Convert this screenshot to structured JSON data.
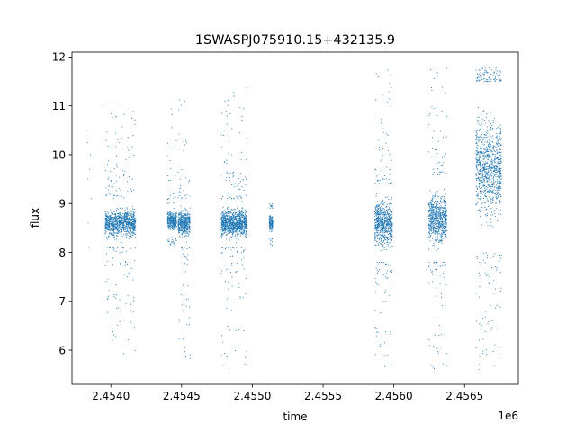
{
  "chart_data": {
    "type": "scatter",
    "title": "1SWASPJ075910.15+432135.9",
    "xlabel": "time",
    "ylabel": "flux",
    "offset_text": "1e6",
    "xlim": [
      2453725,
      2456880
    ],
    "ylim": [
      5.3,
      12.1
    ],
    "x_ticks": [
      {
        "value": 2454000,
        "label": "2.4540"
      },
      {
        "value": 2454500,
        "label": "2.4545"
      },
      {
        "value": 2455000,
        "label": "2.4550"
      },
      {
        "value": 2455500,
        "label": "2.4555"
      },
      {
        "value": 2456000,
        "label": "2.4560"
      },
      {
        "value": 2456500,
        "label": "2.4565"
      }
    ],
    "y_ticks": [
      {
        "value": 6,
        "label": "6"
      },
      {
        "value": 7,
        "label": "7"
      },
      {
        "value": 8,
        "label": "8"
      },
      {
        "value": 9,
        "label": "9"
      },
      {
        "value": 10,
        "label": "10"
      },
      {
        "value": 11,
        "label": "11"
      },
      {
        "value": 12,
        "label": "12"
      }
    ],
    "grid": false,
    "marker_color": "#1f77b4",
    "series": [
      {
        "x": [
          2453832,
          2453835,
          2453838,
          2453840,
          2453845,
          2453850,
          2453855,
          2453860
        ],
        "y": [
          10.5,
          10.25,
          9.5,
          8.6,
          8.1,
          9.7,
          10.0,
          9.1
        ]
      },
      {
        "clusters": [
          {
            "x_range": [
              2453960,
              2454175
            ],
            "core": [
              8.1,
              9.1
            ],
            "range": [
              5.9,
              11.1
            ]
          },
          {
            "x_range": [
              2454400,
              2454465
            ],
            "core": [
              8.3,
              9.0
            ],
            "range": [
              8.1,
              11.0
            ]
          },
          {
            "x_range": [
              2454475,
              2454560
            ],
            "core": [
              8.1,
              9.1
            ],
            "range": [
              5.7,
              11.2
            ]
          },
          {
            "x_range": [
              2454780,
              2454960
            ],
            "core": [
              8.1,
              9.1
            ],
            "range": [
              5.6,
              11.4
            ]
          },
          {
            "x_range": [
              2455120,
              2455145
            ],
            "core": [
              8.3,
              8.9
            ],
            "range": [
              8.1,
              9.0
            ]
          },
          {
            "x_range": [
              2455865,
              2455990
            ],
            "core": [
              7.8,
              9.4
            ],
            "range": [
              5.6,
              11.8
            ]
          },
          {
            "x_range": [
              2456245,
              2456375
            ],
            "core": [
              7.8,
              9.6
            ],
            "range": [
              5.6,
              11.8
            ]
          },
          {
            "x_range": [
              2456580,
              2456760
            ],
            "core": [
              8.0,
              11.5
            ],
            "range": [
              5.6,
              11.8
            ]
          }
        ]
      }
    ]
  }
}
